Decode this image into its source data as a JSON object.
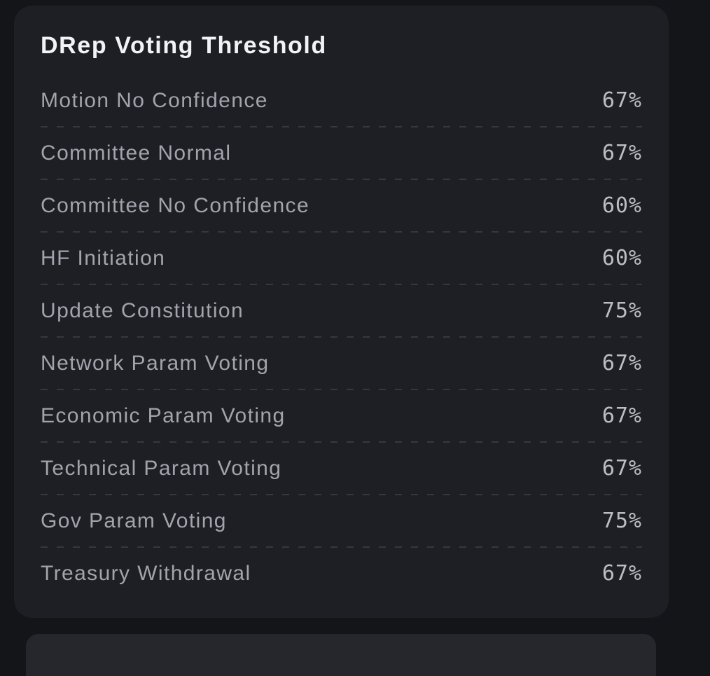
{
  "page": {
    "background_color": "#141519"
  },
  "card": {
    "title": "DRep Voting Threshold",
    "background_color": "#1e1f24",
    "title_color": "#f2f3f5",
    "label_color": "#a2a4ad",
    "value_color": "#bbbdc5",
    "separator_color": "#36383e",
    "rows": [
      {
        "label": "Motion No Confidence",
        "value": "67%"
      },
      {
        "label": "Committee Normal",
        "value": "67%"
      },
      {
        "label": "Committee No Confidence",
        "value": "60%"
      },
      {
        "label": "HF Initiation",
        "value": "60%"
      },
      {
        "label": "Update Constitution",
        "value": "75%"
      },
      {
        "label": "Network Param Voting",
        "value": "67%"
      },
      {
        "label": "Economic Param Voting",
        "value": "67%"
      },
      {
        "label": "Technical Param Voting",
        "value": "67%"
      },
      {
        "label": "Gov Param Voting",
        "value": "75%"
      },
      {
        "label": "Treasury Withdrawal",
        "value": "67%"
      }
    ]
  },
  "next_card": {
    "background_color": "#26272c"
  }
}
